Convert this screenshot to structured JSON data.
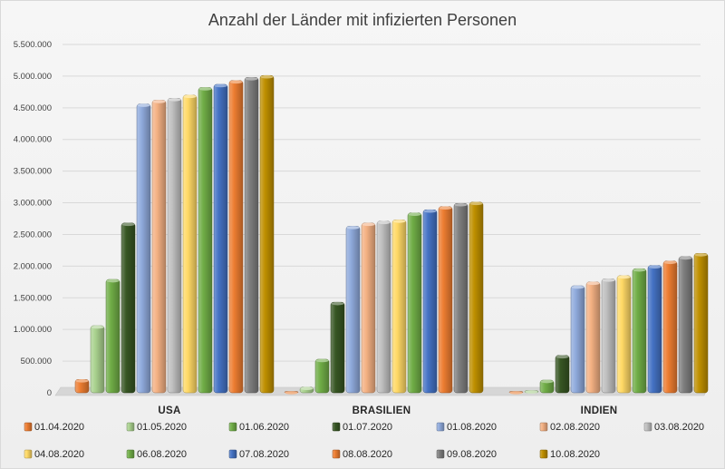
{
  "chart_data": {
    "type": "bar",
    "title": "Anzahl der Länder mit infizierten Personen",
    "xlabel": "",
    "ylabel": "",
    "ylim": [
      0,
      5500000
    ],
    "grid": true,
    "legend_position": "bottom",
    "ytick_labels": [
      "0",
      "500.000",
      "1.000.000",
      "1.500.000",
      "2.000.000",
      "2.500.000",
      "3.000.000",
      "3.500.000",
      "4.000.000",
      "4.500.000",
      "5.000.000",
      "5.500.000"
    ],
    "categories": [
      "USA",
      "BRASILIEN",
      "INDIEN"
    ],
    "series": [
      {
        "name": "01.04.2020",
        "color": "#ed7d31",
        "values": [
          210000,
          6000,
          1600
        ]
      },
      {
        "name": "01.05.2020",
        "color": "#a9d18e",
        "values": [
          1060000,
          90000,
          35000
        ]
      },
      {
        "name": "01.06.2020",
        "color": "#70ad47",
        "values": [
          1790000,
          530000,
          200000
        ]
      },
      {
        "name": "01.07.2020",
        "color": "#375623",
        "values": [
          2680000,
          1430000,
          590000
        ]
      },
      {
        "name": "01.08.2020",
        "color": "#8faadc",
        "values": [
          4560000,
          2630000,
          1690000
        ]
      },
      {
        "name": "02.08.2020",
        "color": "#f4b183",
        "values": [
          4620000,
          2680000,
          1750000
        ]
      },
      {
        "name": "03.08.2020",
        "color": "#bfbfbf",
        "values": [
          4650000,
          2710000,
          1800000
        ]
      },
      {
        "name": "04.08.2020",
        "color": "#ffd966",
        "values": [
          4700000,
          2730000,
          1850000
        ]
      },
      {
        "name": "06.08.2020",
        "color": "#70ad47",
        "values": [
          4820000,
          2840000,
          1960000
        ]
      },
      {
        "name": "07.08.2020",
        "color": "#4472c4",
        "values": [
          4870000,
          2890000,
          2010000
        ]
      },
      {
        "name": "08.08.2020",
        "color": "#ed7d31",
        "values": [
          4930000,
          2940000,
          2080000
        ]
      },
      {
        "name": "09.08.2020",
        "color": "#7f7f7f",
        "values": [
          4980000,
          2990000,
          2150000
        ]
      },
      {
        "name": "10.08.2020",
        "color": "#bf9000",
        "values": [
          5010000,
          3010000,
          2200000
        ]
      }
    ]
  }
}
